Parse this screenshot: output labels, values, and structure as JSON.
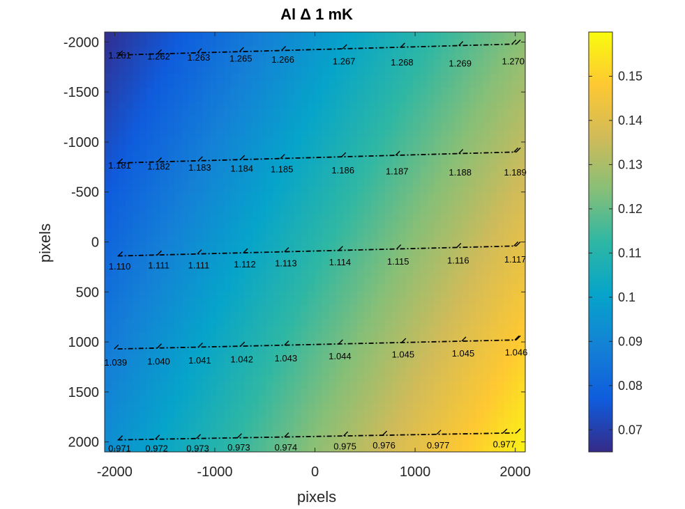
{
  "chart_data": {
    "type": "heatmap",
    "title": "Al Δ 1 mK",
    "xlabel": "pixels",
    "ylabel": "pixels",
    "xlim": [
      -2100,
      2100
    ],
    "ylim": [
      -2100,
      2100
    ],
    "y_reversed": true,
    "xticks": [
      -2000,
      -1000,
      0,
      1000,
      2000
    ],
    "xtick_labels": [
      "-2000",
      "-1000",
      "0",
      "1000",
      "2000"
    ],
    "yticks": [
      -2000,
      -1500,
      -1000,
      -500,
      0,
      500,
      1000,
      1500,
      2000
    ],
    "ytick_labels": [
      "-2000",
      "-1500",
      "-1000",
      "-500",
      "0",
      "500",
      "1000",
      "1500",
      "2000"
    ],
    "colormap": "parula",
    "clim": [
      0.065,
      0.16
    ],
    "colorbar_ticks": [
      0.07,
      0.08,
      0.09,
      0.1,
      0.11,
      0.12,
      0.13,
      0.14,
      0.15
    ],
    "colorbar_tick_labels": [
      "0.07",
      "0.08",
      "0.09",
      "0.1",
      "0.11",
      "0.12",
      "0.13",
      "0.14",
      "0.15"
    ],
    "field_corners": {
      "top_left": 0.066,
      "top_right": 0.125,
      "bottom_left": 0.093,
      "bottom_right": 0.158
    },
    "contours": [
      {
        "x": [
          -1950,
          -2000
        ],
        "points": [
          {
            "x": -1950,
            "y": -1870,
            "label": "1.261"
          },
          {
            "x": -1560,
            "y": -1860,
            "label": "1.262"
          },
          {
            "x": -1160,
            "y": -1850,
            "label": "1.263"
          },
          {
            "x": -740,
            "y": -1840,
            "label": "1.265"
          },
          {
            "x": -320,
            "y": -1830,
            "label": "1.266"
          },
          {
            "x": 290,
            "y": -1810,
            "label": "1.267"
          },
          {
            "x": 870,
            "y": -1800,
            "label": "1.268"
          },
          {
            "x": 1450,
            "y": -1790,
            "label": "1.269"
          },
          {
            "x": 1980,
            "y": -1810,
            "label": "1.270"
          }
        ],
        "line_y": [
          -1870,
          -1980
        ]
      },
      {
        "points": [
          {
            "x": -1950,
            "y": -770,
            "label": "1.181"
          },
          {
            "x": -1560,
            "y": -760,
            "label": "1.182"
          },
          {
            "x": -1150,
            "y": -750,
            "label": "1.183"
          },
          {
            "x": -730,
            "y": -740,
            "label": "1.184"
          },
          {
            "x": -330,
            "y": -730,
            "label": "1.185"
          },
          {
            "x": 280,
            "y": -720,
            "label": "1.186"
          },
          {
            "x": 820,
            "y": -710,
            "label": "1.187"
          },
          {
            "x": 1450,
            "y": -700,
            "label": "1.188"
          },
          {
            "x": 2000,
            "y": -700,
            "label": "1.189"
          }
        ],
        "line_y": [
          -790,
          -900
        ]
      },
      {
        "points": [
          {
            "x": -1950,
            "y": 240,
            "label": "1.110"
          },
          {
            "x": -1560,
            "y": 230,
            "label": "1.111"
          },
          {
            "x": -1160,
            "y": 230,
            "label": "1.111"
          },
          {
            "x": -700,
            "y": 220,
            "label": "1.112"
          },
          {
            "x": -290,
            "y": 210,
            "label": "1.113"
          },
          {
            "x": 250,
            "y": 200,
            "label": "1.114"
          },
          {
            "x": 830,
            "y": 190,
            "label": "1.115"
          },
          {
            "x": 1430,
            "y": 180,
            "label": "1.116"
          },
          {
            "x": 2000,
            "y": 170,
            "label": "1.117"
          }
        ],
        "line_y": [
          140,
          40
        ]
      },
      {
        "points": [
          {
            "x": -1990,
            "y": 1200,
            "label": "1.039"
          },
          {
            "x": -1560,
            "y": 1190,
            "label": "1.040"
          },
          {
            "x": -1150,
            "y": 1180,
            "label": "1.041"
          },
          {
            "x": -730,
            "y": 1170,
            "label": "1.042"
          },
          {
            "x": -290,
            "y": 1160,
            "label": "1.043"
          },
          {
            "x": 250,
            "y": 1140,
            "label": "1.044"
          },
          {
            "x": 880,
            "y": 1120,
            "label": "1.045"
          },
          {
            "x": 1480,
            "y": 1110,
            "label": "1.045"
          },
          {
            "x": 2010,
            "y": 1100,
            "label": "1.046"
          }
        ],
        "line_y": [
          1070,
          980
        ]
      },
      {
        "points": [
          {
            "x": -1950,
            "y": 2060,
            "label": "0.971"
          },
          {
            "x": -1580,
            "y": 2060,
            "label": "0.972"
          },
          {
            "x": -1170,
            "y": 2060,
            "label": "0.973"
          },
          {
            "x": -760,
            "y": 2050,
            "label": "0.973"
          },
          {
            "x": -290,
            "y": 2050,
            "label": "0.974"
          },
          {
            "x": 300,
            "y": 2040,
            "label": "0.975"
          },
          {
            "x": 690,
            "y": 2030,
            "label": "0.976"
          },
          {
            "x": 1230,
            "y": 2030,
            "label": "0.977"
          },
          {
            "x": 1890,
            "y": 2020,
            "label": "0.977"
          }
        ],
        "line_y": [
          1980,
          1910
        ]
      }
    ]
  }
}
